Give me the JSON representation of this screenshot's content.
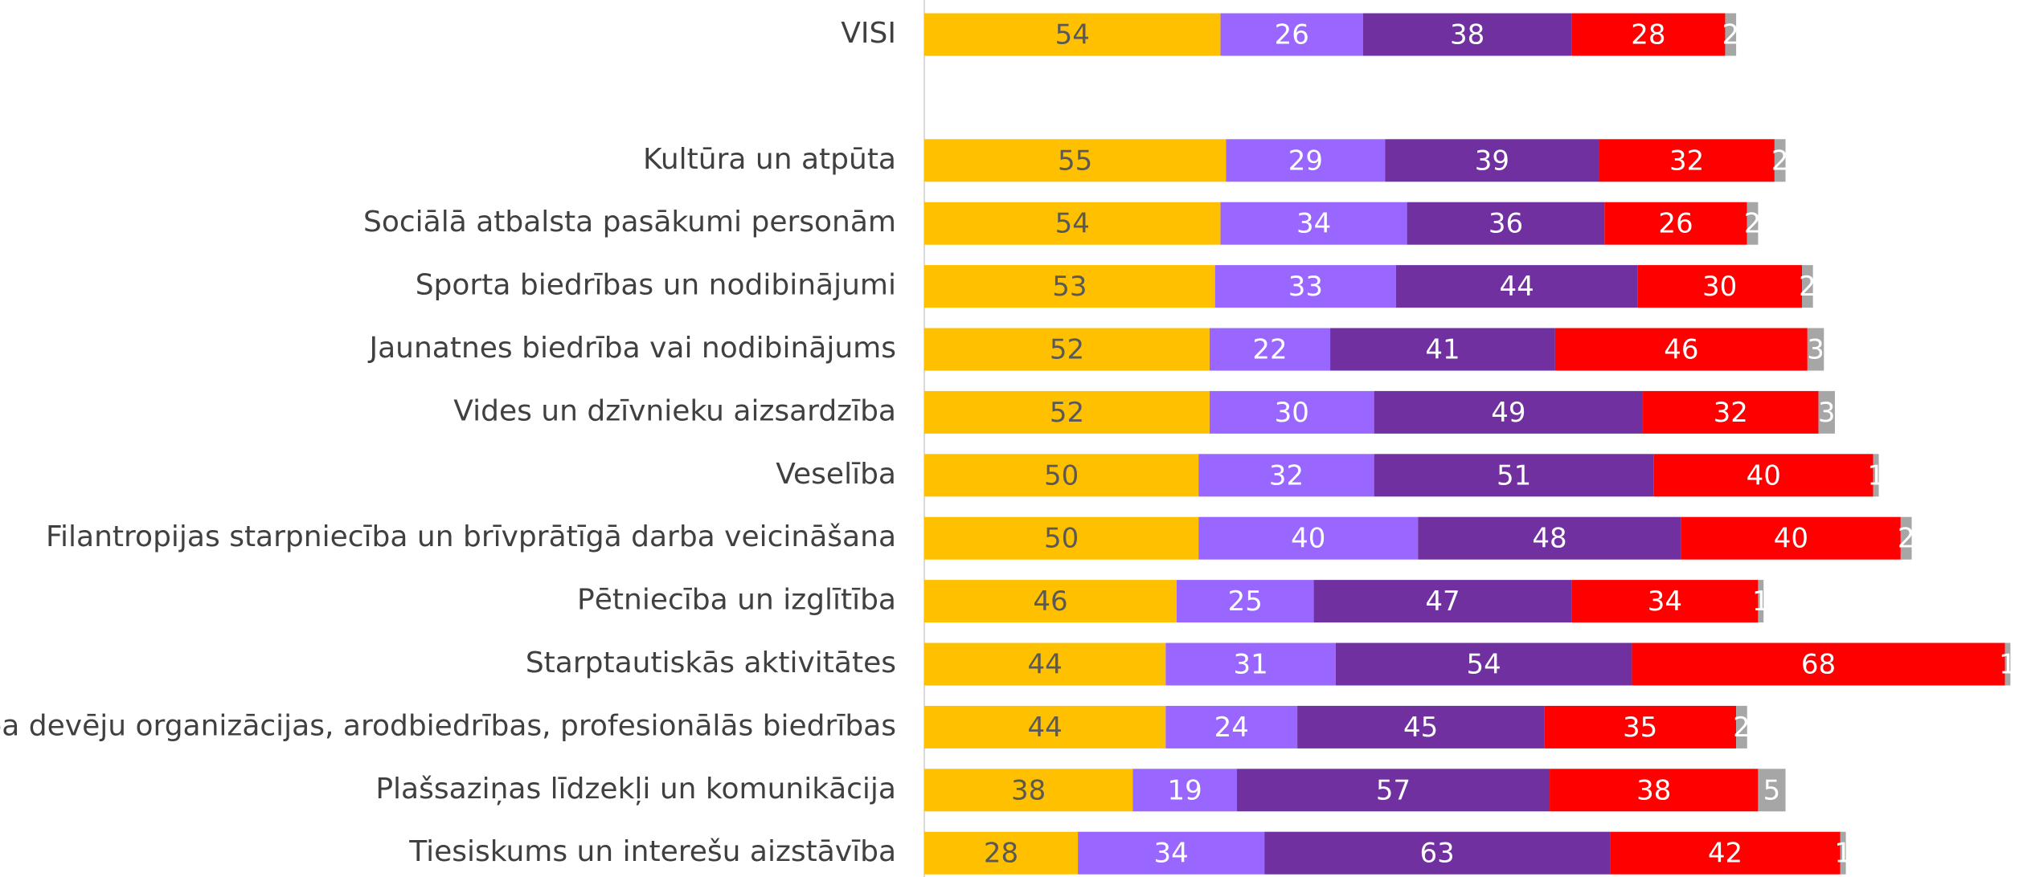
{
  "chart_data": {
    "type": "stacked-bar-horizontal",
    "categories": [
      "VISI",
      null,
      "Kultūra un atpūta",
      "Sociālā atbalsta pasākumi personām",
      "Sporta biedrības un nodibinājumi",
      "Jaunatnes biedrība vai nodibinājums",
      "Vides un dzīvnieku aizsardzība",
      "Veselība",
      "Filantropijas starpniecība un brīvprātīgā darba veicināšana",
      "Pētniecība un izglītība",
      "Starptautiskās aktivitātes",
      "Darba devēju organizācijas, arodbiedrības, profesionālās biedrības",
      "Plašsaziņas līdzekļi un komunikācija",
      "Tiesiskums un interešu aizstāvība"
    ],
    "series": [
      {
        "color": "#ffc000",
        "values": [
          54,
          null,
          55,
          54,
          53,
          52,
          52,
          50,
          50,
          46,
          44,
          44,
          38,
          28
        ]
      },
      {
        "color": "#9966ff",
        "values": [
          26,
          null,
          29,
          34,
          33,
          22,
          30,
          32,
          40,
          25,
          31,
          24,
          19,
          34
        ]
      },
      {
        "color": "#7030a0",
        "values": [
          38,
          null,
          39,
          36,
          44,
          41,
          49,
          51,
          48,
          47,
          54,
          45,
          57,
          63
        ]
      },
      {
        "color": "#ff0000",
        "values": [
          28,
          null,
          32,
          26,
          30,
          46,
          32,
          40,
          40,
          34,
          68,
          35,
          38,
          42
        ]
      },
      {
        "color": "#a6a6a6",
        "values": [
          2,
          null,
          2,
          2,
          2,
          3,
          3,
          1,
          2,
          1,
          1,
          2,
          5,
          1
        ]
      }
    ],
    "xlim": [
      0,
      200
    ]
  }
}
